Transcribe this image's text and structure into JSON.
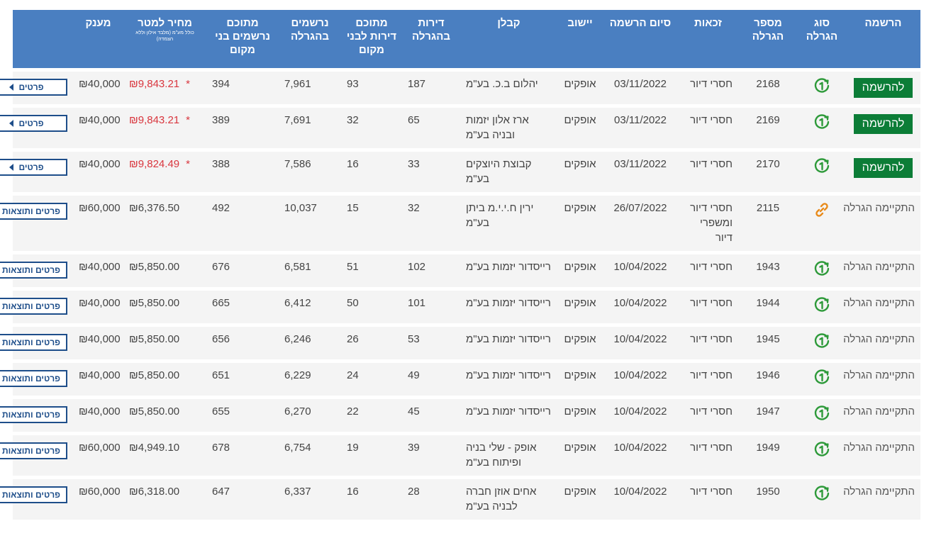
{
  "headers": {
    "registration": "הרשמה",
    "lottery_type": "סוג הגרלה",
    "lottery_no": "מספר הגרלה",
    "eligibility": "זכאות",
    "reg_end": "סיום הרשמה",
    "city": "יישוב",
    "contractor": "קבלן",
    "apartments": "דירות בהגרלה",
    "local_apts": "מתוכם דירות לבני מקום",
    "registered": "נרשמים בהגרלה",
    "local_registered": "מתוכם נרשמים בני מקום",
    "price": "מחיר למטר",
    "price_note": "כולל מע\"מ (מלבד אילון וללא הצמדה)",
    "grant": "מענק"
  },
  "labels": {
    "register": "להרשמה",
    "held": "התקיימה הגרלה",
    "details": "פרטים",
    "details_results": "פרטים ותוצאות"
  },
  "colors": {
    "header_bg": "#4a7fc1",
    "register_bg": "#0c7d37",
    "accent_red": "#d9363e",
    "button_border": "#1e4e8a",
    "icon_green": "#2e9a3a",
    "icon_orange": "#e88a1a"
  },
  "rows": [
    {
      "status": "להרשמה",
      "icon": "green-circle-check-icon",
      "lottery": "2168",
      "eligibility": "חסרי דיור",
      "end": "03/11/2022",
      "city": "אופקים",
      "contractor": "יהלום ב.כ. בע\"מ",
      "apts": "187",
      "local_apts": "93",
      "registered": "7,961",
      "local_reg": "394",
      "price": "₪9,843.21",
      "price_star": "*",
      "grant": "₪40,000",
      "button": "פרטים"
    },
    {
      "status": "להרשמה",
      "icon": "green-circle-check-icon",
      "lottery": "2169",
      "eligibility": "חסרי דיור",
      "end": "03/11/2022",
      "city": "אופקים",
      "contractor": "ארז אלון יזמות ובניה בע\"מ",
      "apts": "65",
      "local_apts": "32",
      "registered": "7,691",
      "local_reg": "389",
      "price": "₪9,843.21",
      "price_star": "*",
      "grant": "₪40,000",
      "button": "פרטים"
    },
    {
      "status": "להרשמה",
      "icon": "green-circle-check-icon",
      "lottery": "2170",
      "eligibility": "חסרי דיור",
      "end": "03/11/2022",
      "city": "אופקים",
      "contractor": "קבוצת היוצקים בע\"מ",
      "apts": "33",
      "local_apts": "16",
      "registered": "7,586",
      "local_reg": "388",
      "price": "₪9,824.49",
      "price_star": "*",
      "grant": "₪40,000",
      "button": "פרטים"
    },
    {
      "status": "התקיימה הגרלה",
      "icon": "orange-link-icon",
      "lottery": "2115",
      "eligibility": "חסרי דיור ומשפרי דיור",
      "end": "26/07/2022",
      "city": "אופקים",
      "contractor": "ירין ח.י.י.מ ביתן בע\"מ",
      "apts": "32",
      "local_apts": "15",
      "registered": "10,037",
      "local_reg": "492",
      "price": "₪6,376.50",
      "price_star": "",
      "grant": "₪60,000",
      "button": "פרטים ותוצאות"
    },
    {
      "status": "התקיימה הגרלה",
      "icon": "green-circle-check-icon",
      "lottery": "1943",
      "eligibility": "חסרי דיור",
      "end": "10/04/2022",
      "city": "אופקים",
      "contractor": "רייסדור יזמות בע\"מ",
      "apts": "102",
      "local_apts": "51",
      "registered": "6,581",
      "local_reg": "676",
      "price": "₪5,850.00",
      "price_star": "",
      "grant": "₪40,000",
      "button": "פרטים ותוצאות"
    },
    {
      "status": "התקיימה הגרלה",
      "icon": "green-circle-check-icon",
      "lottery": "1944",
      "eligibility": "חסרי דיור",
      "end": "10/04/2022",
      "city": "אופקים",
      "contractor": "רייסדור יזמות בע\"מ",
      "apts": "101",
      "local_apts": "50",
      "registered": "6,412",
      "local_reg": "665",
      "price": "₪5,850.00",
      "price_star": "",
      "grant": "₪40,000",
      "button": "פרטים ותוצאות"
    },
    {
      "status": "התקיימה הגרלה",
      "icon": "green-circle-check-icon",
      "lottery": "1945",
      "eligibility": "חסרי דיור",
      "end": "10/04/2022",
      "city": "אופקים",
      "contractor": "רייסדור יזמות בע\"מ",
      "apts": "53",
      "local_apts": "26",
      "registered": "6,246",
      "local_reg": "656",
      "price": "₪5,850.00",
      "price_star": "",
      "grant": "₪40,000",
      "button": "פרטים ותוצאות"
    },
    {
      "status": "התקיימה הגרלה",
      "icon": "green-circle-check-icon",
      "lottery": "1946",
      "eligibility": "חסרי דיור",
      "end": "10/04/2022",
      "city": "אופקים",
      "contractor": "רייסדור יזמות בע\"מ",
      "apts": "49",
      "local_apts": "24",
      "registered": "6,229",
      "local_reg": "651",
      "price": "₪5,850.00",
      "price_star": "",
      "grant": "₪40,000",
      "button": "פרטים ותוצאות"
    },
    {
      "status": "התקיימה הגרלה",
      "icon": "green-circle-check-icon",
      "lottery": "1947",
      "eligibility": "חסרי דיור",
      "end": "10/04/2022",
      "city": "אופקים",
      "contractor": "רייסדור יזמות בע\"מ",
      "apts": "45",
      "local_apts": "22",
      "registered": "6,270",
      "local_reg": "655",
      "price": "₪5,850.00",
      "price_star": "",
      "grant": "₪40,000",
      "button": "פרטים ותוצאות"
    },
    {
      "status": "התקיימה הגרלה",
      "icon": "green-circle-check-icon",
      "lottery": "1949",
      "eligibility": "חסרי דיור",
      "end": "10/04/2022",
      "city": "אופקים",
      "contractor": "אופק - שלי בניה ופיתוח בע\"מ",
      "apts": "39",
      "local_apts": "19",
      "registered": "6,754",
      "local_reg": "678",
      "price": "₪4,949.10",
      "price_star": "",
      "grant": "₪60,000",
      "button": "פרטים ותוצאות"
    },
    {
      "status": "התקיימה הגרלה",
      "icon": "green-circle-check-icon",
      "lottery": "1950",
      "eligibility": "חסרי דיור",
      "end": "10/04/2022",
      "city": "אופקים",
      "contractor": "אחים אוזן חברה לבניה בע\"מ",
      "apts": "28",
      "local_apts": "16",
      "registered": "6,337",
      "local_reg": "647",
      "price": "₪6,318.00",
      "price_star": "",
      "grant": "₪60,000",
      "button": "פרטים ותוצאות"
    }
  ]
}
